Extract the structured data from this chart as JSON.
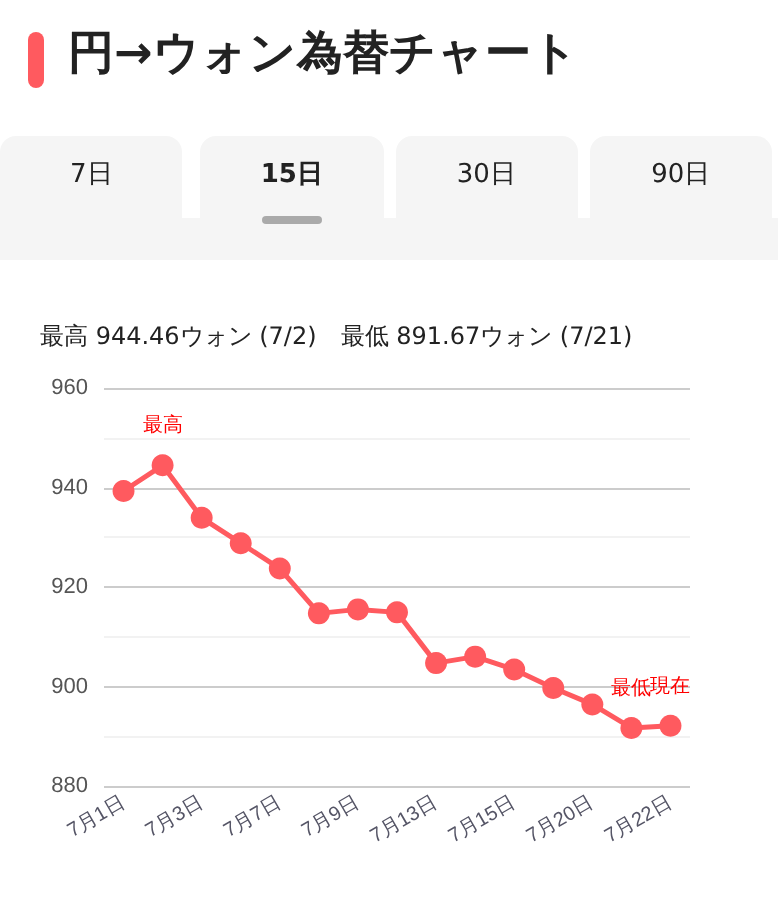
{
  "chart_data": {
    "type": "line",
    "title": "円→ウォン為替チャート",
    "subtitle": "最高 944.46ウォン (7/2)　最低 891.67ウォン (7/21)",
    "categories": [
      "7月1日",
      null,
      "7月3日",
      null,
      "7月7日",
      null,
      "7月9日",
      null,
      "7月13日",
      null,
      "7月15日",
      null,
      "7月20日",
      null,
      "7月22日"
    ],
    "series": [
      {
        "color": "#ff5a5f",
        "values": [
          939.3,
          944.46,
          933.9,
          928.8,
          923.7,
          914.7,
          915.5,
          914.9,
          904.7,
          906.0,
          903.4,
          899.7,
          896.4,
          891.67,
          892.1
        ]
      }
    ],
    "ylim": [
      880,
      960
    ],
    "yticks": [
      880,
      900,
      920,
      940,
      960
    ],
    "grid": "y",
    "marker": "circle",
    "line_style": "solid",
    "annotations": [
      "7日",
      "15日",
      "30日",
      "90日",
      {
        "text": "最高",
        "y": 944.46
      },
      {
        "text": "最低",
        "y": 891.67
      },
      {
        "text": "現在",
        "y": 892.1
      }
    ]
  }
}
